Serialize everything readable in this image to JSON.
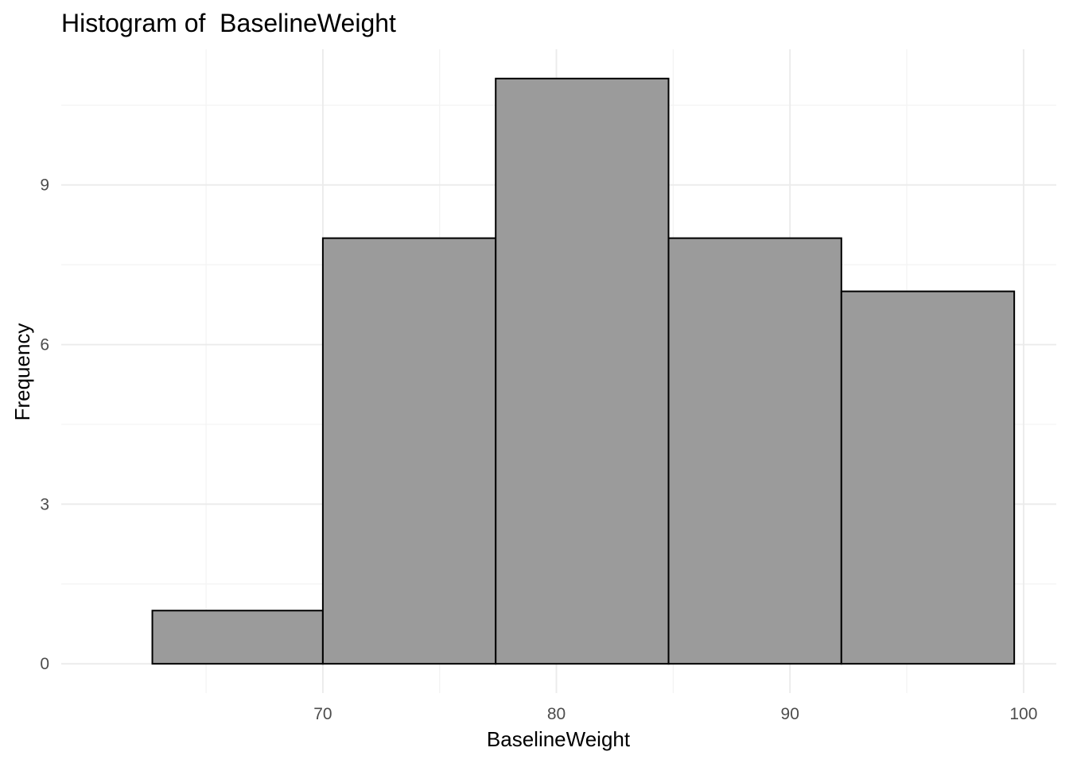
{
  "chart_data": {
    "type": "bar",
    "title": "Histogram of  BaselineWeight",
    "xlabel": "BaselineWeight",
    "ylabel": "Frequency",
    "bins": [
      {
        "x0": 62.7,
        "x1": 70.0,
        "count": 1
      },
      {
        "x0": 70.0,
        "x1": 77.4,
        "count": 8
      },
      {
        "x0": 77.4,
        "x1": 84.8,
        "count": 11
      },
      {
        "x0": 84.8,
        "x1": 92.2,
        "count": 8
      },
      {
        "x0": 92.2,
        "x1": 99.6,
        "count": 7
      }
    ],
    "x_ticks": [
      "70",
      "80",
      "90",
      "100"
    ],
    "y_ticks": [
      "0",
      "3",
      "6",
      "9"
    ],
    "xlim": [
      58.8,
      101.4
    ],
    "ylim": [
      -0.55,
      11.55
    ],
    "grid": true,
    "bar_color": "#9b9b9b",
    "bar_border_color": "#000000"
  }
}
